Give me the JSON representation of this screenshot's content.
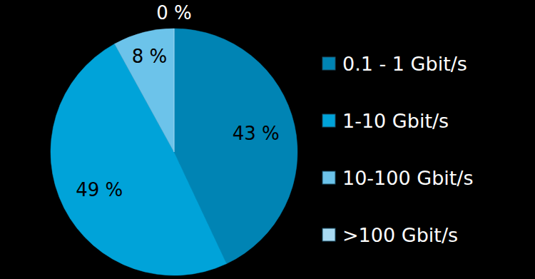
{
  "chart_data": {
    "type": "pie",
    "categories": [
      "0.1 - 1 Gbit/s",
      "1-10 Gbit/s",
      "10-100 Gbit/s",
      ">100 Gbit/s"
    ],
    "values": [
      43,
      49,
      8,
      0
    ],
    "value_labels": [
      "43 %",
      "49 %",
      "8 %",
      "0 %"
    ],
    "colors": [
      "#0084b4",
      "#00a3d9",
      "#6cc3ea",
      "#a9daf2"
    ],
    "data_labels": true,
    "legend": "right"
  }
}
